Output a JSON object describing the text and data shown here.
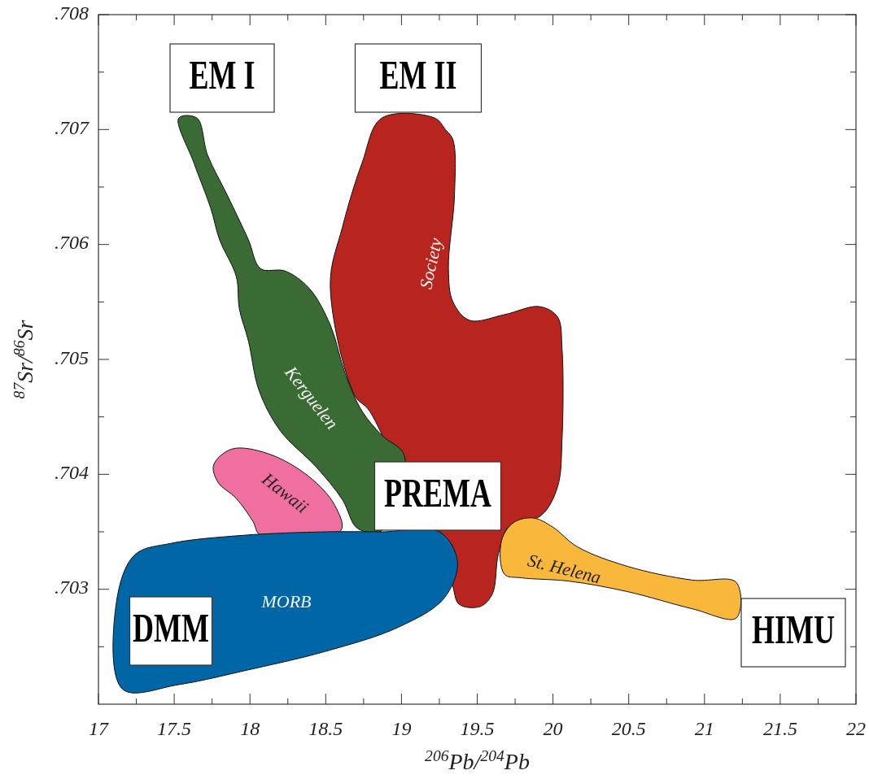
{
  "chart_data": {
    "type": "area",
    "xlabel": "$^{206}$Pb/$^{204}$Pb",
    "ylabel": "$^{87}$Sr/$^{86}$Sr",
    "xlim": [
      17,
      22
    ],
    "ylim": [
      0.702,
      0.708
    ],
    "xticks": [
      17,
      {
        "value": 17.25,
        "label": null
      },
      17.5,
      {
        "value": 17.75,
        "label": null
      },
      18,
      {
        "value": 18.25,
        "label": null
      },
      18.5,
      {
        "value": 18.75,
        "label": null
      },
      19,
      {
        "value": 19.25,
        "label": null
      },
      19.5,
      {
        "value": 19.75,
        "label": null
      },
      20,
      {
        "value": 20.25,
        "label": null
      },
      20.5,
      {
        "value": 20.75,
        "label": null
      },
      21,
      {
        "value": 21.25,
        "label": null
      },
      21.5,
      {
        "value": 21.75,
        "label": null
      },
      22
    ],
    "yticks": [
      {
        "value": 0.7025,
        "label": null
      },
      {
        "value": 0.703,
        "label": ".703"
      },
      {
        "value": 0.7035,
        "label": null
      },
      {
        "value": 0.704,
        "label": ".704"
      },
      {
        "value": 0.7045,
        "label": null
      },
      {
        "value": 0.705,
        "label": ".705"
      },
      {
        "value": 0.7055,
        "label": null
      },
      {
        "value": 0.706,
        "label": ".706"
      },
      {
        "value": 0.7065,
        "label": null
      },
      {
        "value": 0.707,
        "label": ".707"
      },
      {
        "value": 0.7075,
        "label": null
      },
      {
        "value": 0.708,
        "label": ".708"
      }
    ],
    "series": [
      {
        "name": "Society",
        "color": "#b8251e",
        "x": [
          18.87,
          19.22,
          19.29,
          19.34,
          19.35,
          19.31,
          19.34,
          19.45,
          19.68,
          19.91,
          20.03,
          20.06,
          20.06,
          20.03,
          19.92,
          19.71,
          19.64,
          19.6,
          19.52,
          19.38,
          19.33,
          19.14,
          18.79,
          18.69,
          18.53,
          18.61,
          18.74
        ],
        "values": [
          0.7071,
          0.7071,
          0.707,
          0.70691,
          0.70643,
          0.70579,
          0.7055,
          0.70534,
          0.70539,
          0.70546,
          0.70537,
          0.70509,
          0.70431,
          0.70389,
          0.70364,
          0.70355,
          0.70331,
          0.70296,
          0.70285,
          0.70287,
          0.70306,
          0.70352,
          0.70455,
          0.70469,
          0.70565,
          0.70615,
          0.70671
        ]
      },
      {
        "name": "Kerguelen",
        "color": "#3a6b35",
        "x": [
          17.53,
          17.63,
          17.74,
          17.8,
          17.91,
          17.93,
          17.99,
          18.06,
          18.2,
          18.44,
          18.61,
          18.71,
          18.87,
          19.02,
          18.87,
          18.74,
          18.63,
          18.53,
          18.39,
          18.23,
          18.07,
          17.99,
          17.85,
          17.72,
          17.65
        ],
        "values": [
          0.7071,
          0.70671,
          0.70632,
          0.70604,
          0.70572,
          0.70544,
          0.70516,
          0.70473,
          0.70438,
          0.70406,
          0.70378,
          0.70353,
          0.70351,
          0.70416,
          0.70434,
          0.70455,
          0.70487,
          0.7053,
          0.70562,
          0.70577,
          0.70579,
          0.70604,
          0.70643,
          0.70678,
          0.7071
        ]
      },
      {
        "name": "Hawaii",
        "color": "#ef6fa0",
        "x": [
          17.76,
          17.88,
          18.12,
          18.39,
          18.56,
          18.6,
          18.07,
          18.02,
          17.91,
          17.79
        ],
        "values": [
          0.70408,
          0.70422,
          0.70418,
          0.70398,
          0.70373,
          0.70351,
          0.70347,
          0.70359,
          0.70379,
          0.70393
        ]
      },
      {
        "name": "MORB",
        "color": "#0066a6",
        "x": [
          17.12,
          17.24,
          17.48,
          17.96,
          18.5,
          18.87,
          19.25,
          19.37,
          19.28,
          18.98,
          18.5,
          17.96,
          17.53,
          17.16
        ],
        "values": [
          0.7029,
          0.7033,
          0.7034,
          0.70347,
          0.7035,
          0.7035,
          0.7035,
          0.70324,
          0.70292,
          0.70267,
          0.70246,
          0.70229,
          0.70217,
          0.70213
        ]
      },
      {
        "name": "St. Helena",
        "color": "#f9b83c",
        "x": [
          19.66,
          19.74,
          19.87,
          20.0,
          20.16,
          20.49,
          20.92,
          21.21,
          21.21,
          20.92,
          20.49,
          20.11,
          19.79,
          19.68
        ],
        "values": [
          0.70342,
          0.70358,
          0.70362,
          0.70354,
          0.70337,
          0.7032,
          0.70308,
          0.70306,
          0.70275,
          0.70283,
          0.70298,
          0.70307,
          0.7031,
          0.70313
        ]
      }
    ],
    "annotations": [
      "EM I",
      "EM II",
      "PREMA",
      "DMM",
      "HIMU"
    ]
  }
}
